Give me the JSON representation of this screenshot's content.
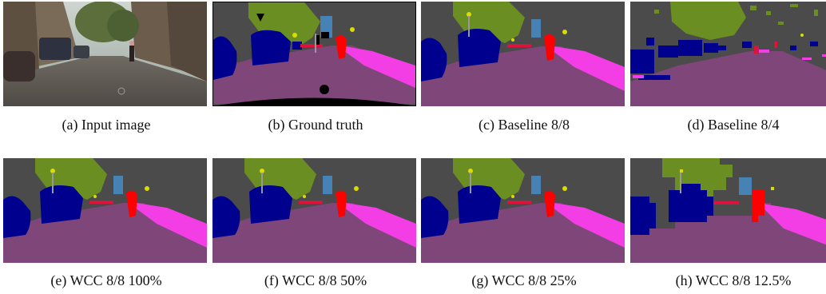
{
  "figure": {
    "panels": [
      {
        "caption": "(a) Input image",
        "kind": "photo"
      },
      {
        "caption": "(b) Ground truth",
        "kind": "ground-truth"
      },
      {
        "caption": "(c) Baseline 8/8",
        "kind": "segmentation"
      },
      {
        "caption": "(d) Baseline 8/4",
        "kind": "noisy-segmentation"
      },
      {
        "caption": "(e) WCC 8/8 100%",
        "kind": "segmentation"
      },
      {
        "caption": "(f) WCC 8/8 50%",
        "kind": "segmentation"
      },
      {
        "caption": "(g) WCC 8/8 25%",
        "kind": "segmentation"
      },
      {
        "caption": "(h) WCC 8/8 12.5%",
        "kind": "segmentation-blocky"
      }
    ],
    "class_colors": {
      "road": "#7f4779",
      "sidewalk": "#f23ee4",
      "building": "#4b4b4b",
      "vegetation": "#6b8e23",
      "sky": "#4682b4",
      "car": "#00008e",
      "person": "#ff0000",
      "rider": "#dc143c",
      "traffic-sign": "#dcdc00",
      "pole": "#999999",
      "void": "#000000"
    }
  }
}
